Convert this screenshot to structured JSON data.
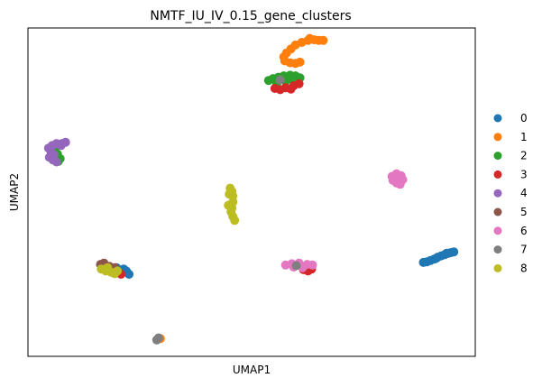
{
  "chart_data": {
    "type": "scatter",
    "title": "NMTF_IU_IV_0.15_gene_clusters",
    "xlabel": "UMAP1",
    "ylabel": "UMAP2",
    "xlim": [
      0,
      100
    ],
    "ylim": [
      0,
      100
    ],
    "grid": false,
    "ticks": false,
    "legend_position": "right",
    "series": [
      {
        "name": "0",
        "color": "#1f77b4",
        "points": [
          [
            88.4,
            28.6
          ],
          [
            89.2,
            28.8
          ],
          [
            90.0,
            29.2
          ],
          [
            90.8,
            29.6
          ],
          [
            91.6,
            30.2
          ],
          [
            92.4,
            30.6
          ],
          [
            93.2,
            31.0
          ],
          [
            94.0,
            31.4
          ],
          [
            94.6,
            31.6
          ],
          [
            95.2,
            31.8
          ],
          [
            93.6,
            31.4
          ],
          [
            91.2,
            29.8
          ],
          [
            21.4,
            26.6
          ],
          [
            22.0,
            26.0
          ],
          [
            22.6,
            25.0
          ],
          [
            20.6,
            25.8
          ],
          [
            19.8,
            27.0
          ]
        ]
      },
      {
        "name": "1",
        "color": "#ff7f0e",
        "points": [
          [
            63.0,
            96.8
          ],
          [
            64.0,
            96.4
          ],
          [
            65.0,
            96.2
          ],
          [
            66.0,
            96.2
          ],
          [
            61.2,
            95.6
          ],
          [
            59.8,
            94.8
          ],
          [
            58.8,
            93.6
          ],
          [
            57.8,
            92.4
          ],
          [
            57.2,
            91.2
          ],
          [
            57.4,
            90.0
          ],
          [
            58.6,
            89.4
          ],
          [
            59.8,
            89.2
          ],
          [
            60.8,
            89.6
          ],
          [
            62.6,
            96.2
          ],
          [
            82.8,
            53.4
          ],
          [
            29.6,
            5.4
          ]
        ]
      },
      {
        "name": "2",
        "color": "#2ca02c",
        "points": [
          [
            53.8,
            84.0
          ],
          [
            54.8,
            84.6
          ],
          [
            56.0,
            85.0
          ],
          [
            57.2,
            85.4
          ],
          [
            58.6,
            85.6
          ],
          [
            59.8,
            85.4
          ],
          [
            60.8,
            84.8
          ],
          [
            59.0,
            84.4
          ],
          [
            57.6,
            83.8
          ],
          [
            55.6,
            83.0
          ],
          [
            6.6,
            61.6
          ],
          [
            7.2,
            60.2
          ],
          [
            6.0,
            62.6
          ],
          [
            6.8,
            59.4
          ]
        ]
      },
      {
        "name": "3",
        "color": "#d62728",
        "points": [
          [
            55.2,
            81.6
          ],
          [
            56.4,
            81.2
          ],
          [
            57.6,
            81.8
          ],
          [
            59.4,
            82.4
          ],
          [
            60.6,
            83.0
          ],
          [
            58.8,
            81.4
          ],
          [
            61.6,
            26.4
          ],
          [
            62.6,
            26.0
          ],
          [
            63.4,
            26.6
          ],
          [
            20.8,
            25.0
          ]
        ]
      },
      {
        "name": "4",
        "color": "#9467bd",
        "points": [
          [
            4.6,
            63.4
          ],
          [
            5.4,
            64.2
          ],
          [
            6.4,
            64.8
          ],
          [
            7.6,
            64.8
          ],
          [
            8.4,
            65.2
          ],
          [
            7.4,
            64.2
          ],
          [
            5.2,
            62.0
          ],
          [
            4.8,
            60.6
          ],
          [
            5.6,
            59.8
          ],
          [
            6.4,
            59.2
          ],
          [
            5.8,
            61.4
          ]
        ]
      },
      {
        "name": "5",
        "color": "#8c564b",
        "points": [
          [
            16.2,
            28.0
          ],
          [
            17.0,
            28.4
          ],
          [
            18.2,
            27.4
          ],
          [
            19.4,
            27.0
          ]
        ]
      },
      {
        "name": "6",
        "color": "#e377c2",
        "points": [
          [
            81.4,
            54.8
          ],
          [
            82.4,
            55.6
          ],
          [
            83.4,
            55.0
          ],
          [
            83.8,
            53.8
          ],
          [
            82.4,
            52.8
          ],
          [
            81.6,
            53.6
          ],
          [
            83.2,
            52.4
          ],
          [
            57.6,
            27.8
          ],
          [
            59.0,
            28.2
          ],
          [
            60.6,
            28.4
          ],
          [
            62.4,
            28.0
          ],
          [
            63.6,
            27.8
          ],
          [
            59.4,
            27.2
          ],
          [
            61.4,
            27.0
          ]
        ]
      },
      {
        "name": "7",
        "color": "#7f7f7f",
        "points": [
          [
            29.2,
            5.6
          ],
          [
            28.8,
            5.0
          ],
          [
            60.0,
            27.6
          ],
          [
            56.4,
            84.2
          ]
        ]
      },
      {
        "name": "8",
        "color": "#bcbd22",
        "points": [
          [
            45.6,
            50.2
          ],
          [
            45.8,
            48.8
          ],
          [
            45.8,
            47.0
          ],
          [
            45.6,
            45.2
          ],
          [
            45.4,
            44.0
          ],
          [
            45.8,
            42.6
          ],
          [
            46.2,
            41.4
          ],
          [
            45.0,
            49.4
          ],
          [
            44.8,
            46.0
          ],
          [
            45.2,
            51.2
          ],
          [
            16.4,
            26.6
          ],
          [
            17.4,
            26.0
          ],
          [
            18.6,
            25.6
          ],
          [
            19.4,
            25.2
          ],
          [
            17.8,
            27.0
          ],
          [
            20.0,
            26.0
          ]
        ]
      }
    ]
  }
}
